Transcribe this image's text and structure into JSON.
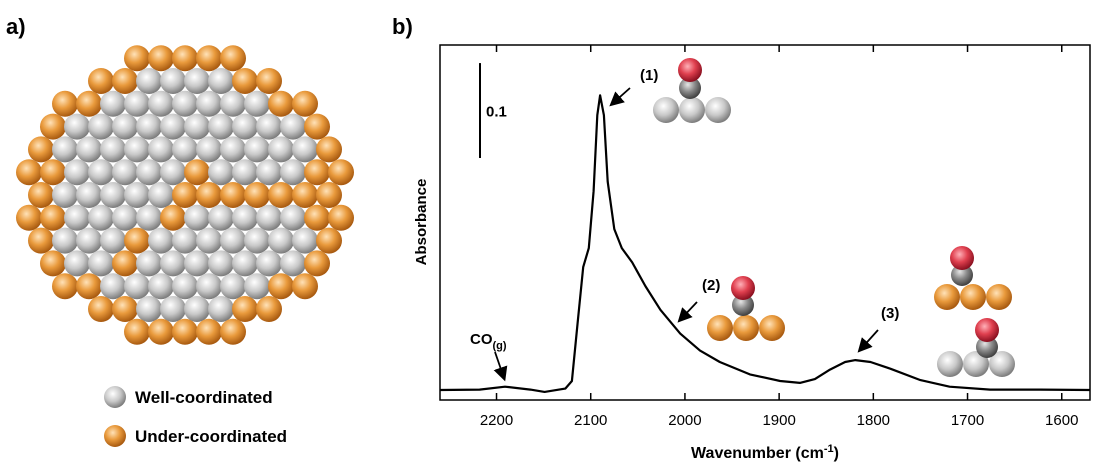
{
  "panel_labels": [
    "a)",
    "b)"
  ],
  "legend": [
    "Well-coordinated",
    "Under-coordinated"
  ],
  "chart_data": {
    "type": "line",
    "x_label": {
      "text": "Wavenumber (cm",
      "sup": "-1",
      "tail": ")"
    },
    "y_label": "Absorbance",
    "scale_bar": 0.1,
    "annotations": [
      {
        "text": "(1)"
      },
      {
        "text": "(2)"
      },
      {
        "text": "(3)"
      },
      {
        "text": "CO",
        "sub": "(g)"
      }
    ],
    "color": "#000000",
    "xlim": [
      2260,
      1570
    ],
    "ylim": [
      0,
      0.374
    ],
    "xticks": [
      2200,
      2100,
      2000,
      1900,
      1800,
      1700,
      1600
    ],
    "x": [
      2260,
      2218,
      2191,
      2164,
      2149,
      2127,
      2120,
      2114,
      2108,
      2102,
      2097,
      2093,
      2090,
      2086,
      2082,
      2075,
      2067,
      2056,
      2042,
      2026,
      2005,
      1984,
      1963,
      1931,
      1899,
      1878,
      1862,
      1846,
      1830,
      1819,
      1803,
      1782,
      1750,
      1719,
      1676,
      1623,
      1570
    ],
    "values": [
      0.0105,
      0.011,
      0.014,
      0.011,
      0.0085,
      0.012,
      0.02,
      0.08,
      0.14,
      0.16,
      0.22,
      0.3,
      0.321,
      0.3,
      0.23,
      0.18,
      0.16,
      0.145,
      0.12,
      0.095,
      0.07,
      0.052,
      0.04,
      0.027,
      0.02,
      0.018,
      0.022,
      0.032,
      0.04,
      0.042,
      0.04,
      0.033,
      0.021,
      0.014,
      0.011,
      0.011,
      0.0105
    ]
  }
}
